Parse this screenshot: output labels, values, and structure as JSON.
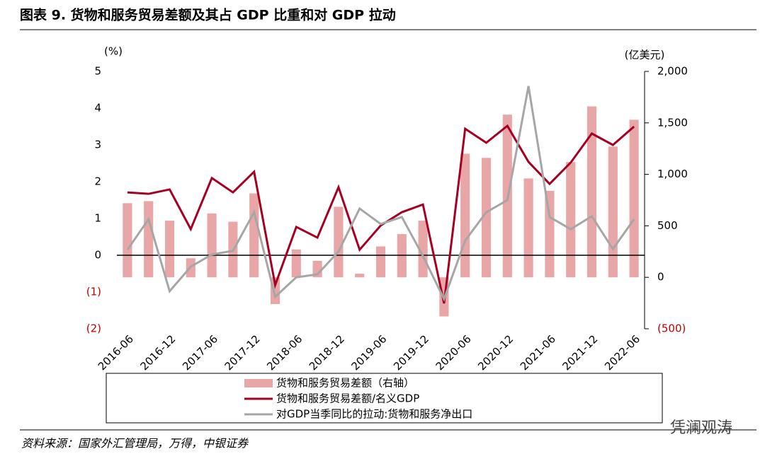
{
  "chart_data": {
    "type": "bar_line",
    "title": "图表 9. 货物和服务贸易差额及其占 GDP 比重和对 GDP 拉动",
    "source": "资料来源：国家外汇管理局，万得，中银证券",
    "watermark": "凭澜观涛",
    "y_label": "(%)",
    "y2_label": "(亿美元)",
    "categories": [
      "2016-06",
      null,
      "2016-12",
      null,
      "2017-06",
      null,
      "2017-12",
      null,
      "2018-06",
      null,
      "2018-12",
      null,
      "2019-06",
      null,
      "2019-12",
      null,
      "2020-06",
      null,
      "2020-12",
      null,
      "2021-06",
      null,
      "2021-12",
      null,
      "2022-06"
    ],
    "ylim": [
      -2,
      5
    ],
    "yticks": [
      {
        "value": -2,
        "label": "(2)"
      },
      {
        "value": -1,
        "label": "(1)"
      },
      0,
      1,
      2,
      3,
      4,
      5
    ],
    "y2lim": [
      -500,
      2000
    ],
    "y2ticks": [
      {
        "value": -500,
        "label": "(500)"
      },
      0,
      500,
      {
        "value": 1000,
        "label": "1,000"
      },
      {
        "value": 1500,
        "label": "1,500"
      },
      {
        "value": 2000,
        "label": "2,000"
      }
    ],
    "series": [
      {
        "name": "货物和服务贸易差额（右轴）",
        "kind": "bar",
        "axis": "y2",
        "color": "#e8a6a6",
        "values": [
          720,
          740,
          550,
          185,
          620,
          540,
          815,
          -260,
          270,
          160,
          685,
          35,
          300,
          420,
          550,
          -380,
          1200,
          1160,
          1580,
          960,
          840,
          1120,
          1660,
          1270,
          1530
        ]
      },
      {
        "name": "货物和服务贸易差额/名义GDP",
        "kind": "line",
        "color": "#a50021",
        "values": [
          1.71,
          1.67,
          1.79,
          0.71,
          2.1,
          1.71,
          2.27,
          -0.81,
          0.77,
          0.48,
          1.85,
          0.15,
          0.81,
          1.17,
          1.38,
          -1.31,
          3.44,
          3.06,
          3.52,
          2.54,
          1.94,
          2.52,
          3.31,
          3.0,
          3.5
        ]
      },
      {
        "name": "对GDP当季同比的拉动:货物和服务净出口",
        "kind": "line",
        "color": "#a6a6a6",
        "values": [
          0.15,
          0.98,
          -0.98,
          -0.31,
          0.02,
          0.12,
          1.17,
          -1.13,
          -0.6,
          -0.52,
          0.1,
          1.27,
          0.85,
          1.04,
          -0.02,
          -1.19,
          0.4,
          1.17,
          1.5,
          4.6,
          1.04,
          0.71,
          1.06,
          0.17,
          0.98
        ]
      }
    ]
  }
}
